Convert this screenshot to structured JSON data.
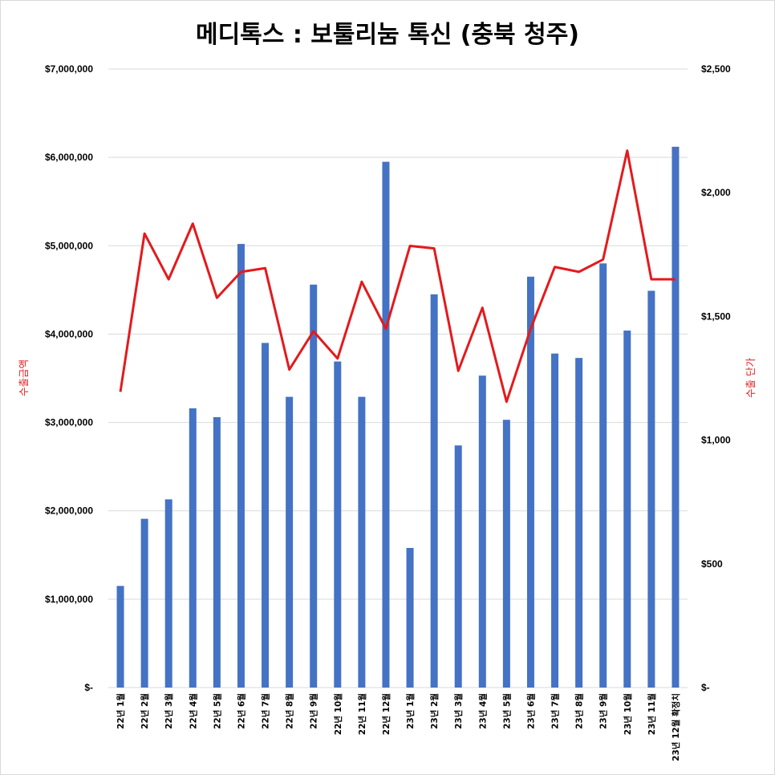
{
  "chart_data": {
    "type": "bar",
    "title": "메디톡스 : 보툴리눔 톡신 (충북 청주)",
    "categories": [
      "22년 1월",
      "22년 2월",
      "22년 3월",
      "22년 4월",
      "22년 5월",
      "22년 6월",
      "22년 7월",
      "22년 8월",
      "22년 9월",
      "22년 10월",
      "22년 11월",
      "22년 12월",
      "23년 1월",
      "23년 2월",
      "23년 3월",
      "23년 4월",
      "23년 5월",
      "23년 6월",
      "23년 7월",
      "23년 8월",
      "23년 9월",
      "23년 10월",
      "23년 11월",
      "23년 12월 확정치"
    ],
    "series": [
      {
        "name": "수출금액",
        "type": "bar",
        "axis": "left",
        "color": "#4472c4",
        "values": [
          1150000,
          1910000,
          2130000,
          3160000,
          3060000,
          5020000,
          3900000,
          3290000,
          4560000,
          3690000,
          3290000,
          5950000,
          1580000,
          4450000,
          2740000,
          3530000,
          3030000,
          4650000,
          3780000,
          3730000,
          4800000,
          4040000,
          4490000,
          6120000
        ]
      },
      {
        "name": "수출 단가",
        "type": "line",
        "axis": "right",
        "color": "#e31a1c",
        "values": [
          1195,
          1835,
          1650,
          1875,
          1575,
          1680,
          1695,
          1285,
          1440,
          1330,
          1640,
          1450,
          1785,
          1775,
          1280,
          1535,
          1155,
          1450,
          1700,
          1680,
          1730,
          2170,
          1650,
          1650
        ]
      }
    ],
    "y_left": {
      "label": "수출금액",
      "ylim": [
        0,
        7000000
      ],
      "ticks": [
        {
          "value": 0,
          "label": "$-"
        },
        {
          "value": 1000000,
          "label": "$1,000,000"
        },
        {
          "value": 2000000,
          "label": "$2,000,000"
        },
        {
          "value": 3000000,
          "label": "$3,000,000"
        },
        {
          "value": 4000000,
          "label": "$4,000,000"
        },
        {
          "value": 5000000,
          "label": "$5,000,000"
        },
        {
          "value": 6000000,
          "label": "$6,000,000"
        },
        {
          "value": 7000000,
          "label": "$7,000,000"
        }
      ]
    },
    "y_right": {
      "label": "수출 단가",
      "ylim": [
        0,
        2500
      ],
      "ticks": [
        {
          "value": 0,
          "label": "$-"
        },
        {
          "value": 500,
          "label": "$500"
        },
        {
          "value": 1000,
          "label": "$1,000"
        },
        {
          "value": 1500,
          "label": "$1,500"
        },
        {
          "value": 2000,
          "label": "$2,000"
        },
        {
          "value": 2500,
          "label": "$2,500"
        }
      ]
    },
    "grid": true,
    "legend": "none"
  }
}
